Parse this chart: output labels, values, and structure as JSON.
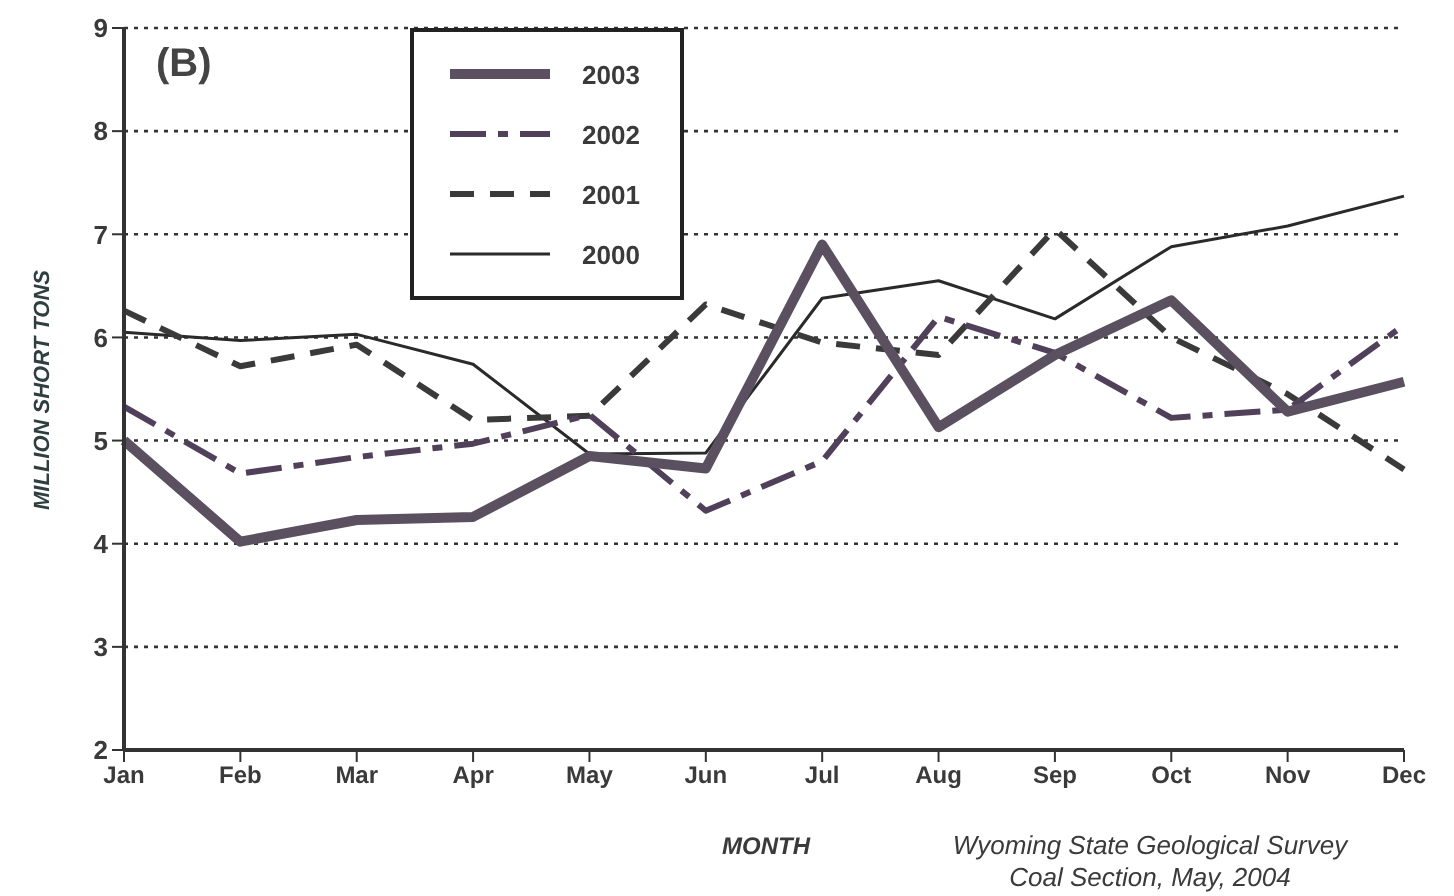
{
  "chart_data": {
    "type": "line",
    "title": "(B)",
    "xlabel": "MONTH",
    "ylabel": "MILLION SHORT TONS",
    "annotations": [
      "Wyoming State Geological Survey",
      "Coal Section, May, 2004"
    ],
    "categories": [
      "Jan",
      "Feb",
      "Mar",
      "Apr",
      "May",
      "Jun",
      "Jul",
      "Aug",
      "Sep",
      "Oct",
      "Nov",
      "Dec"
    ],
    "ylim": [
      2,
      9
    ],
    "yticks": [
      2,
      3,
      4,
      5,
      6,
      7,
      8,
      9
    ],
    "grid": "y",
    "legend": "top left",
    "series": [
      {
        "name": "2003",
        "color": "#5a5060",
        "line_style": "solid",
        "values": [
          5.0,
          4.02,
          4.23,
          4.26,
          4.85,
          4.73,
          6.9,
          5.13,
          5.83,
          6.36,
          5.28,
          5.57
        ]
      },
      {
        "name": "2002",
        "color": "#50405a",
        "line_style": "dashed",
        "values": [
          5.33,
          4.68,
          4.84,
          4.97,
          5.25,
          4.32,
          4.8,
          6.2,
          5.85,
          5.22,
          5.3,
          6.12
        ]
      },
      {
        "name": "2001",
        "color": "#3a3a3a",
        "line_style": "dashed",
        "values": [
          6.26,
          5.72,
          5.93,
          5.2,
          5.24,
          6.32,
          5.95,
          5.83,
          7.05,
          6.0,
          5.45,
          4.72
        ]
      },
      {
        "name": "2000",
        "color": "#2a2a2a",
        "line_style": "solid",
        "values": [
          6.05,
          5.97,
          6.03,
          5.74,
          4.87,
          4.88,
          6.38,
          6.55,
          6.18,
          6.88,
          7.08,
          7.37
        ]
      }
    ]
  }
}
